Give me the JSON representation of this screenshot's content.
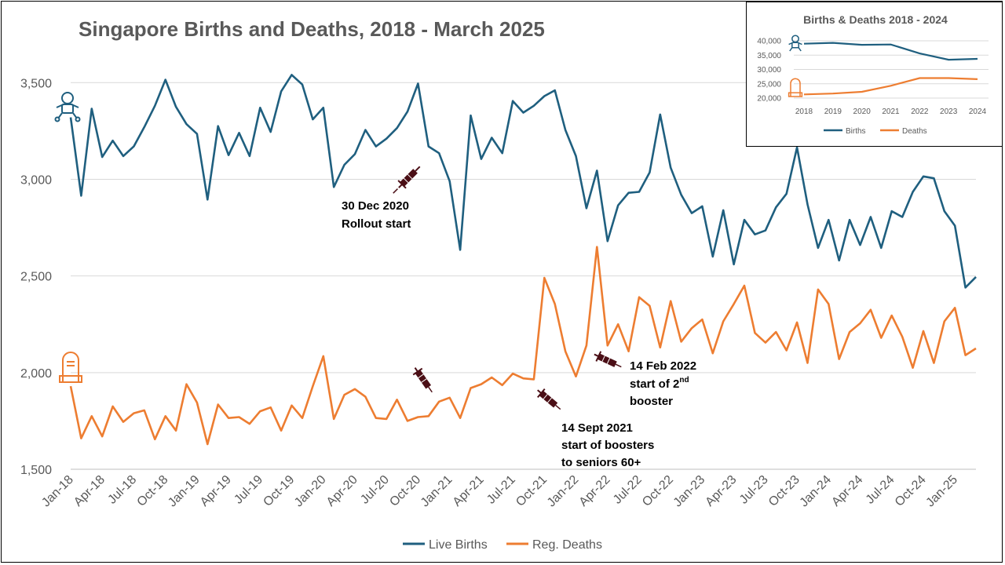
{
  "chart_data": [
    {
      "type": "line",
      "title": "Singapore Births and Deaths, 2018 - March 2025",
      "ylim": [
        1500,
        3700
      ],
      "y_ticks": [
        "1,500",
        "2,000",
        "2,500",
        "3,000",
        "3,500"
      ],
      "y_tick_values": [
        1500,
        2000,
        2500,
        3000,
        3500
      ],
      "x_tick_labels": [
        "Jan-18",
        "Apr-18",
        "Jul-18",
        "Oct-18",
        "Jan-19",
        "Apr-19",
        "Jul-19",
        "Oct-19",
        "Jan-20",
        "Apr-20",
        "Jul-20",
        "Oct-20",
        "Jan-21",
        "Apr-21",
        "Jul-21",
        "Oct-21",
        "Jan-22",
        "Apr-22",
        "Jul-22",
        "Oct-22",
        "Jan-23",
        "Apr-23",
        "Jul-23",
        "Oct-23",
        "Jan-24",
        "Apr-24",
        "Jul-24",
        "Oct-24",
        "Jan-25"
      ],
      "legend_position": "bottom",
      "grid": true,
      "series": [
        {
          "name": "Live Births",
          "color": "#1F5F7F",
          "values": [
            3320,
            2915,
            3365,
            3115,
            3200,
            3120,
            3170,
            3270,
            3380,
            3515,
            3375,
            3285,
            3235,
            2895,
            3275,
            3125,
            3240,
            3120,
            3370,
            3245,
            3455,
            3540,
            3490,
            3310,
            3370,
            2960,
            3075,
            3130,
            3255,
            3170,
            3210,
            3265,
            3350,
            3495,
            3170,
            3135,
            2990,
            2635,
            3330,
            3105,
            3215,
            3135,
            3405,
            3345,
            3380,
            3430,
            3460,
            3255,
            3120,
            2850,
            3045,
            2680,
            2865,
            2930,
            2935,
            3035,
            3335,
            3060,
            2920,
            2825,
            2860,
            2600,
            2840,
            2560,
            2790,
            2715,
            2735,
            2855,
            2925,
            3165,
            2870,
            2645,
            2790,
            2580,
            2790,
            2660,
            2805,
            2645,
            2835,
            2805,
            2935,
            3015,
            3005,
            2835,
            2760,
            2440,
            2495
          ]
        },
        {
          "name": "Reg. Deaths",
          "color": "#ED7D31",
          "values": [
            1930,
            1660,
            1775,
            1670,
            1825,
            1745,
            1790,
            1805,
            1655,
            1775,
            1700,
            1940,
            1845,
            1630,
            1835,
            1765,
            1770,
            1735,
            1800,
            1820,
            1700,
            1830,
            1765,
            1930,
            2085,
            1760,
            1885,
            1915,
            1875,
            1765,
            1760,
            1860,
            1750,
            1770,
            1775,
            1850,
            1870,
            1765,
            1920,
            1940,
            1975,
            1935,
            1995,
            1970,
            1965,
            2490,
            2355,
            2110,
            1980,
            2140,
            2650,
            2140,
            2250,
            2110,
            2390,
            2345,
            2130,
            2370,
            2160,
            2230,
            2275,
            2100,
            2265,
            2355,
            2450,
            2205,
            2155,
            2210,
            2115,
            2260,
            2050,
            2430,
            2355,
            2070,
            2210,
            2255,
            2325,
            2180,
            2295,
            2185,
            2025,
            2215,
            2050,
            2265,
            2335,
            2090,
            2125
          ]
        }
      ]
    },
    {
      "type": "line",
      "title": "Births & Deaths 2018 - 2024",
      "categories": [
        "2018",
        "2019",
        "2020",
        "2021",
        "2022",
        "2023",
        "2024"
      ],
      "ylim": [
        20000,
        40000
      ],
      "y_ticks": [
        "20,000",
        "25,000",
        "30,000",
        "35,000",
        "40,000"
      ],
      "y_tick_values": [
        20000,
        25000,
        30000,
        35000,
        40000
      ],
      "legend_position": "bottom",
      "grid": true,
      "series": [
        {
          "name": "Births",
          "color": "#1F5F7F",
          "values": [
            39000,
            39300,
            38600,
            38700,
            35600,
            33400,
            33700
          ]
        },
        {
          "name": "Deaths",
          "color": "#ED7D31",
          "values": [
            21300,
            21600,
            22200,
            24300,
            27000,
            27000,
            26600
          ]
        }
      ]
    }
  ],
  "annotations": {
    "rollout": [
      "30 Dec 2020",
      "Rollout start"
    ],
    "boosters": [
      "14 Sept 2021",
      "start of boosters",
      "to seniors 60+"
    ],
    "second_booster": {
      "line1_pre": "14 Feb 2022",
      "line2_pre": "start of  2",
      "line2_sup": "nd",
      "line3": "booster"
    }
  },
  "icons": [
    "baby-icon",
    "gravestone-icon",
    "syringe-icon"
  ]
}
